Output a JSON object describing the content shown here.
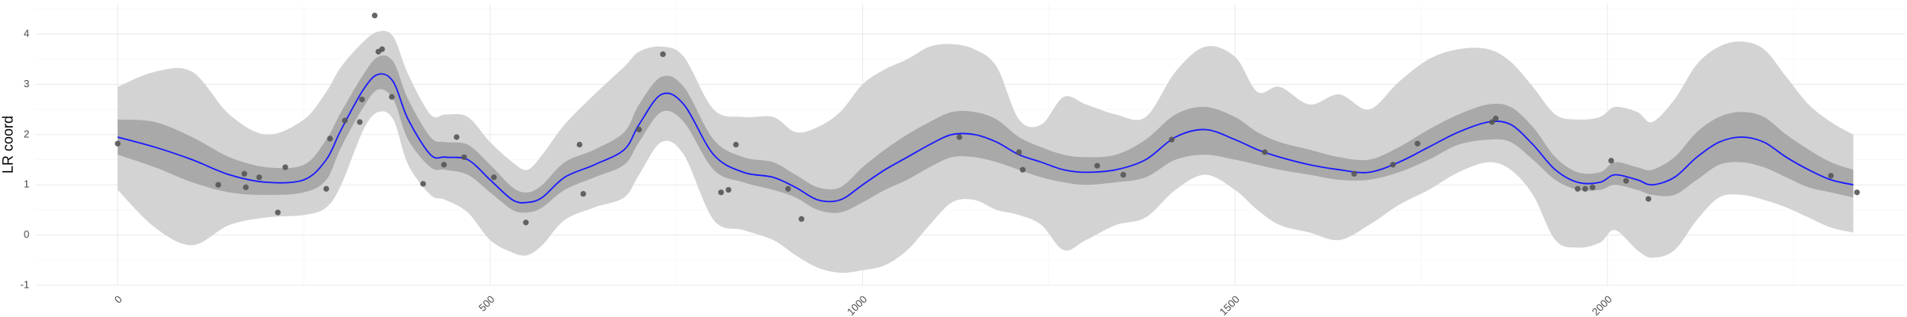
{
  "chart_data": {
    "type": "line",
    "title": "",
    "xlabel": "",
    "ylabel": "LR coord",
    "xlim": [
      -110,
      2400
    ],
    "ylim": [
      -1,
      4.6
    ],
    "x_ticks": [
      0,
      500,
      1000,
      1500,
      2000
    ],
    "y_ticks": [
      -1,
      0,
      1,
      2,
      3,
      4
    ],
    "grid": true,
    "legend": "none",
    "colors": {
      "mean_line": "#1a1aff",
      "inner_band": "#a9a9a9",
      "outer_band": "#d3d3d3",
      "points": "#555555"
    },
    "series": [
      {
        "role": "mean",
        "x": [
          0,
          50,
          100,
          150,
          200,
          250,
          280,
          300,
          330,
          350,
          370,
          390,
          420,
          440,
          470,
          500,
          530,
          550,
          570,
          600,
          640,
          680,
          700,
          730,
          760,
          800,
          840,
          880,
          910,
          940,
          970,
          1000,
          1030,
          1060,
          1090,
          1120,
          1150,
          1180,
          1210,
          1240,
          1270,
          1300,
          1340,
          1380,
          1420,
          1460,
          1500,
          1530,
          1560,
          1600,
          1640,
          1680,
          1720,
          1760,
          1800,
          1840,
          1870,
          1900,
          1930,
          1960,
          1990,
          2010,
          2040,
          2060,
          2090,
          2120,
          2150,
          2180,
          2210,
          2240,
          2270,
          2300,
          2330
        ],
        "y": [
          1.95,
          1.75,
          1.5,
          1.2,
          1.05,
          1.1,
          1.5,
          2.1,
          2.9,
          3.2,
          3.05,
          2.3,
          1.6,
          1.55,
          1.5,
          1.1,
          0.7,
          0.65,
          0.75,
          1.15,
          1.4,
          1.7,
          2.2,
          2.8,
          2.6,
          1.6,
          1.25,
          1.15,
          0.95,
          0.7,
          0.7,
          1.0,
          1.3,
          1.55,
          1.8,
          2.0,
          2.0,
          1.85,
          1.6,
          1.45,
          1.3,
          1.25,
          1.3,
          1.5,
          1.95,
          2.1,
          1.9,
          1.7,
          1.55,
          1.4,
          1.3,
          1.25,
          1.45,
          1.75,
          2.05,
          2.25,
          2.2,
          1.8,
          1.3,
          1.05,
          1.05,
          1.2,
          1.1,
          1.0,
          1.15,
          1.55,
          1.85,
          1.95,
          1.85,
          1.55,
          1.3,
          1.1,
          1.0
        ]
      },
      {
        "role": "inner_band",
        "x": [
          0,
          50,
          100,
          150,
          200,
          250,
          280,
          300,
          330,
          350,
          370,
          390,
          420,
          440,
          470,
          500,
          530,
          550,
          570,
          600,
          640,
          680,
          700,
          730,
          760,
          800,
          840,
          880,
          910,
          940,
          970,
          1000,
          1030,
          1060,
          1090,
          1120,
          1150,
          1180,
          1210,
          1240,
          1270,
          1300,
          1340,
          1380,
          1420,
          1460,
          1500,
          1530,
          1560,
          1600,
          1640,
          1680,
          1720,
          1760,
          1800,
          1840,
          1870,
          1900,
          1930,
          1960,
          1990,
          2010,
          2040,
          2060,
          2090,
          2120,
          2150,
          2180,
          2210,
          2240,
          2270,
          2300,
          2330
        ],
        "lower": [
          1.6,
          1.35,
          1.05,
          0.85,
          0.8,
          0.85,
          1.1,
          1.75,
          2.55,
          2.9,
          2.7,
          1.9,
          1.35,
          1.3,
          1.2,
          0.85,
          0.5,
          0.45,
          0.55,
          0.9,
          1.15,
          1.4,
          1.85,
          2.45,
          2.25,
          1.3,
          1.05,
          0.9,
          0.75,
          0.5,
          0.45,
          0.65,
          0.9,
          1.1,
          1.35,
          1.55,
          1.55,
          1.45,
          1.3,
          1.15,
          1.05,
          1.0,
          1.05,
          1.15,
          1.5,
          1.6,
          1.5,
          1.4,
          1.3,
          1.2,
          1.1,
          1.1,
          1.25,
          1.5,
          1.8,
          1.9,
          1.85,
          1.5,
          1.1,
          0.9,
          0.9,
          1.0,
          0.9,
          0.8,
          0.8,
          1.1,
          1.4,
          1.45,
          1.35,
          1.15,
          0.95,
          0.85,
          0.75
        ],
        "upper": [
          2.3,
          2.25,
          1.95,
          1.55,
          1.35,
          1.4,
          1.9,
          2.45,
          3.2,
          3.55,
          3.45,
          2.7,
          1.95,
          1.85,
          1.8,
          1.4,
          0.95,
          0.85,
          1.0,
          1.45,
          1.7,
          2.05,
          2.6,
          3.15,
          2.95,
          1.9,
          1.55,
          1.45,
          1.2,
          0.95,
          0.95,
          1.35,
          1.7,
          2.0,
          2.25,
          2.45,
          2.45,
          2.3,
          1.95,
          1.75,
          1.6,
          1.55,
          1.6,
          1.9,
          2.4,
          2.55,
          2.35,
          2.05,
          1.85,
          1.7,
          1.55,
          1.5,
          1.75,
          2.1,
          2.4,
          2.6,
          2.55,
          2.15,
          1.55,
          1.25,
          1.25,
          1.45,
          1.35,
          1.3,
          1.55,
          2.05,
          2.35,
          2.45,
          2.35,
          2.0,
          1.7,
          1.45,
          1.3
        ]
      },
      {
        "role": "outer_band",
        "x": [
          0,
          50,
          100,
          150,
          200,
          250,
          280,
          300,
          330,
          350,
          370,
          390,
          420,
          440,
          470,
          500,
          530,
          550,
          570,
          600,
          640,
          680,
          700,
          730,
          760,
          800,
          840,
          880,
          910,
          940,
          970,
          1000,
          1030,
          1060,
          1090,
          1120,
          1150,
          1180,
          1210,
          1240,
          1270,
          1300,
          1340,
          1380,
          1420,
          1460,
          1500,
          1530,
          1560,
          1600,
          1640,
          1680,
          1720,
          1760,
          1800,
          1840,
          1870,
          1900,
          1930,
          1960,
          1990,
          2010,
          2040,
          2060,
          2090,
          2120,
          2150,
          2180,
          2210,
          2240,
          2270,
          2300,
          2330
        ],
        "lower": [
          0.9,
          0.15,
          -0.2,
          0.2,
          0.35,
          0.4,
          0.55,
          1.0,
          2.1,
          2.45,
          2.3,
          1.4,
          0.8,
          0.7,
          0.45,
          -0.1,
          -0.35,
          -0.4,
          -0.2,
          0.3,
          0.55,
          0.75,
          1.2,
          1.85,
          1.6,
          0.3,
          0.1,
          -0.1,
          -0.4,
          -0.65,
          -0.75,
          -0.7,
          -0.6,
          -0.3,
          0.2,
          0.65,
          0.7,
          0.5,
          0.4,
          0.2,
          -0.3,
          -0.1,
          0.2,
          0.35,
          0.9,
          1.2,
          0.9,
          0.5,
          0.2,
          0.05,
          -0.1,
          0.2,
          0.6,
          0.9,
          1.25,
          1.45,
          1.3,
          0.8,
          -0.1,
          -0.25,
          -0.15,
          0.1,
          -0.3,
          -0.45,
          -0.3,
          0.3,
          0.75,
          0.8,
          0.7,
          0.55,
          0.35,
          0.15,
          0.05
        ],
        "upper": [
          2.95,
          3.25,
          3.25,
          2.4,
          2.0,
          2.3,
          2.85,
          3.35,
          3.85,
          4.05,
          3.95,
          3.2,
          2.4,
          2.4,
          2.35,
          1.85,
          1.45,
          1.3,
          1.6,
          2.2,
          2.8,
          3.35,
          3.65,
          3.75,
          3.55,
          2.5,
          2.35,
          2.35,
          2.05,
          2.15,
          2.45,
          3.0,
          3.3,
          3.5,
          3.75,
          3.8,
          3.7,
          3.35,
          2.3,
          2.2,
          2.75,
          2.6,
          2.4,
          2.35,
          3.25,
          3.75,
          3.55,
          2.85,
          2.95,
          2.6,
          2.8,
          2.5,
          3.05,
          3.5,
          3.7,
          3.7,
          3.45,
          2.95,
          2.4,
          2.3,
          2.35,
          2.55,
          2.45,
          2.25,
          2.7,
          3.4,
          3.75,
          3.85,
          3.7,
          3.15,
          2.6,
          2.25,
          2.0
        ]
      },
      {
        "role": "points",
        "x": [
          0,
          135,
          170,
          172,
          190,
          215,
          225,
          280,
          285,
          305,
          325,
          328,
          345,
          350,
          355,
          368,
          410,
          438,
          455,
          465,
          505,
          548,
          620,
          625,
          700,
          732,
          810,
          820,
          830,
          900,
          918,
          1130,
          1210,
          1215,
          1315,
          1350,
          1415,
          1540,
          1660,
          1712,
          1745,
          1845,
          1850,
          1960,
          1970,
          1980,
          2005,
          2025,
          2055,
          2300,
          2335
        ],
        "y": [
          1.82,
          1.0,
          1.22,
          0.95,
          1.15,
          0.45,
          1.35,
          0.92,
          1.92,
          2.28,
          2.25,
          2.7,
          4.37,
          3.65,
          3.7,
          2.75,
          1.02,
          1.4,
          1.95,
          1.55,
          1.15,
          0.25,
          1.8,
          0.82,
          2.1,
          3.6,
          0.85,
          0.9,
          1.8,
          0.92,
          0.32,
          1.95,
          1.65,
          1.3,
          1.38,
          1.2,
          1.9,
          1.65,
          1.22,
          1.4,
          1.82,
          2.25,
          2.32,
          0.92,
          0.92,
          0.95,
          1.48,
          1.08,
          0.72,
          1.18,
          0.85
        ]
      }
    ]
  }
}
